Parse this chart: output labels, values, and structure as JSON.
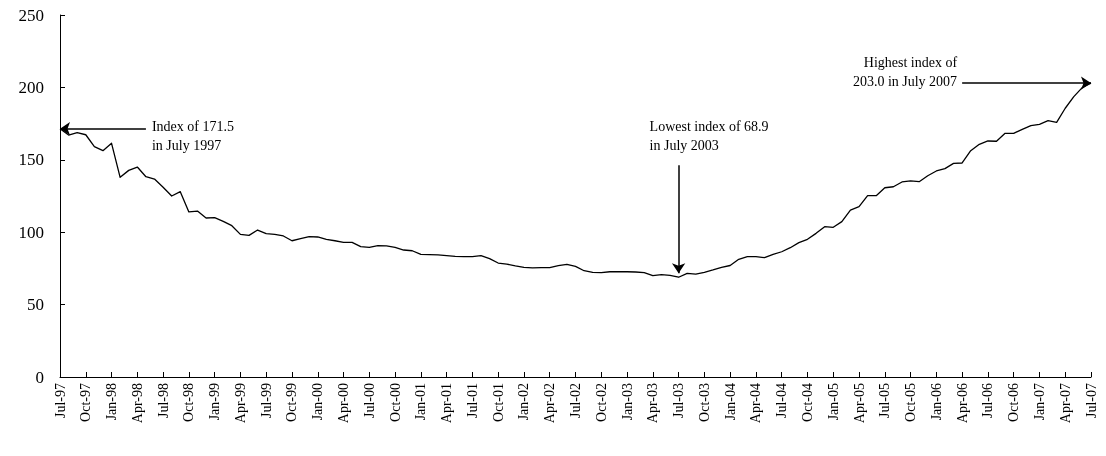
{
  "chart_data": {
    "type": "line",
    "categories": [
      "Jul-97",
      null,
      null,
      "Oct-97",
      null,
      null,
      "Jan-98",
      null,
      null,
      "Apr-98",
      null,
      null,
      "Jul-98",
      null,
      null,
      "Oct-98",
      null,
      null,
      "Jan-99",
      null,
      null,
      "Apr-99",
      null,
      null,
      "Jul-99",
      null,
      null,
      "Oct-99",
      null,
      null,
      "Jan-00",
      null,
      null,
      "Apr-00",
      null,
      null,
      "Jul-00",
      null,
      null,
      "Oct-00",
      null,
      null,
      "Jan-01",
      null,
      null,
      "Apr-01",
      null,
      null,
      "Jul-01",
      null,
      null,
      "Oct-01",
      null,
      null,
      "Jan-02",
      null,
      null,
      "Apr-02",
      null,
      null,
      "Jul-02",
      null,
      null,
      "Oct-02",
      null,
      null,
      "Jan-03",
      null,
      null,
      "Apr-03",
      null,
      null,
      "Jul-03",
      null,
      null,
      "Oct-03",
      null,
      null,
      "Jan-04",
      null,
      null,
      "Apr-04",
      null,
      null,
      "Jul-04",
      null,
      null,
      "Oct-04",
      null,
      null,
      "Jan-05",
      null,
      null,
      "Apr-05",
      null,
      null,
      "Jul-05",
      null,
      null,
      "Oct-05",
      null,
      null,
      "Jan-06",
      null,
      null,
      "Apr-06",
      null,
      null,
      "Jul-06",
      null,
      null,
      "Oct-06",
      null,
      null,
      "Jan-07",
      null,
      null,
      "Apr-07",
      null,
      null,
      "Jul-07"
    ],
    "series": [
      {
        "color": "#000000",
        "values": [
          171.5,
          167.1,
          168.7,
          167.3,
          159.1,
          156.3,
          161.4,
          137.9,
          142.7,
          145.0,
          138.3,
          136.7,
          131.0,
          125.0,
          128.0,
          114.0,
          114.6,
          109.8,
          110.0,
          107.5,
          104.5,
          98.5,
          97.8,
          101.5,
          99.0,
          98.5,
          97.4,
          94.1,
          95.5,
          96.9,
          96.7,
          95.1,
          94.1,
          93.0,
          93.0,
          90.0,
          89.5,
          90.7,
          90.5,
          89.5,
          87.7,
          87.2,
          84.7,
          84.5,
          84.3,
          83.8,
          83.3,
          83.1,
          83.1,
          83.8,
          81.7,
          78.7,
          78.0,
          76.7,
          75.7,
          75.3,
          75.5,
          75.5,
          76.9,
          77.8,
          76.4,
          73.4,
          72.3,
          72.1,
          72.7,
          72.7,
          72.7,
          72.5,
          72.1,
          70.0,
          70.7,
          70.2,
          68.9,
          71.6,
          71.1,
          72.3,
          73.9,
          75.7,
          77.0,
          81.3,
          83.1,
          83.1,
          82.4,
          84.7,
          86.5,
          89.3,
          92.8,
          95.1,
          99.2,
          103.8,
          103.4,
          107.3,
          115.3,
          117.6,
          125.2,
          125.2,
          130.7,
          131.4,
          134.7,
          135.4,
          134.9,
          139.0,
          142.3,
          143.9,
          147.5,
          147.8,
          156.3,
          160.7,
          163.0,
          162.8,
          168.3,
          168.3,
          171.0,
          173.6,
          174.5,
          177.0,
          175.9,
          185.6,
          193.6,
          200.0,
          203.0
        ]
      }
    ],
    "ylim": [
      0,
      250
    ],
    "yticks": [
      0,
      50,
      100,
      150,
      200,
      250
    ],
    "grid": false,
    "marker": "none",
    "line_style": "solid",
    "annotations": [
      {
        "text": "Index of 171.5\nin July 1997",
        "x": "Jul-97",
        "y": 171.5
      },
      {
        "text": "Lowest index of 68.9\nin July 2003",
        "x": "Jul-03",
        "y": 68.9
      },
      {
        "text": "Highest index of\n203.0 in July 2007",
        "x": "Jul-07",
        "y": 203.0
      }
    ]
  }
}
